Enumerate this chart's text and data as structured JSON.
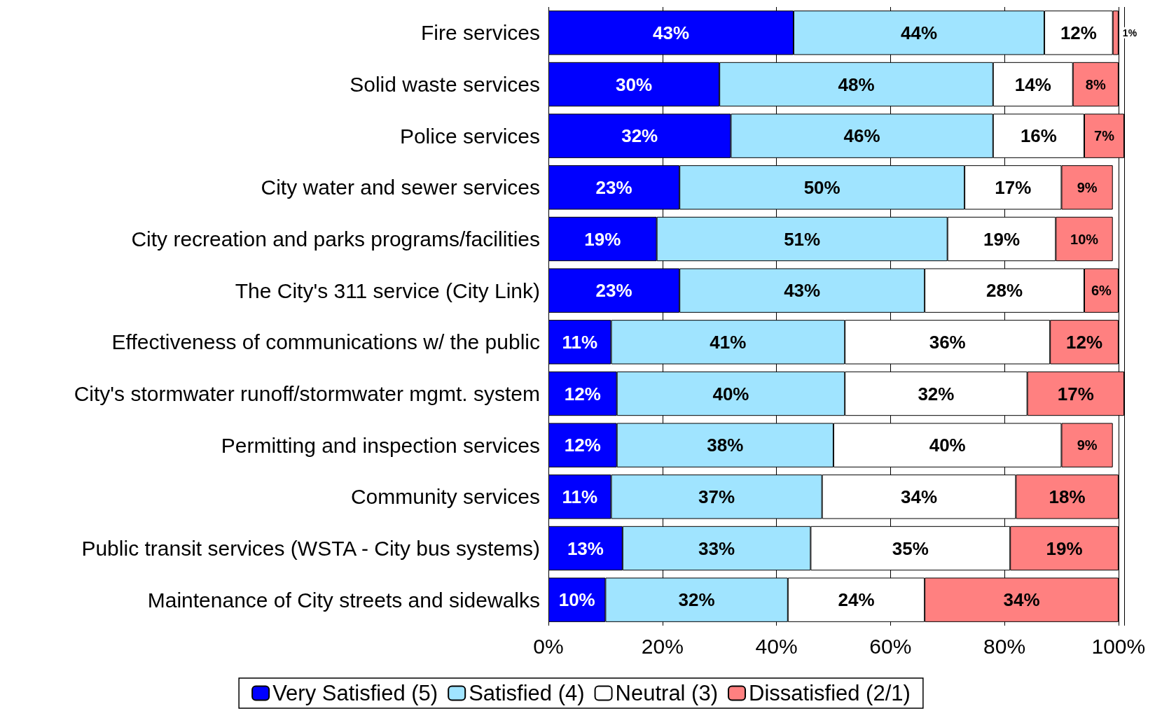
{
  "chart_data": {
    "type": "bar",
    "orientation": "horizontal",
    "stacked": true,
    "categories": [
      "Fire services",
      "Solid waste services",
      "Police services",
      "City water and sewer services",
      "City recreation and parks programs/facilities",
      "The City's 311 service (City Link)",
      "Effectiveness of communications w/ the public",
      "City's stormwater runoff/stormwater mgmt. system",
      "Permitting and inspection services",
      "Community services",
      "Public transit services (WSTA - City bus systems)",
      "Maintenance of City streets and sidewalks"
    ],
    "series": [
      {
        "name": "Very Satisfied (5)",
        "color": "#0000ff",
        "values": [
          43,
          30,
          32,
          23,
          19,
          23,
          11,
          12,
          12,
          11,
          13,
          10
        ],
        "value_labels": [
          "43%",
          "30%",
          "32%",
          "23%",
          "19%",
          "23%",
          "11%",
          "12%",
          "12%",
          "11%",
          "13%",
          "10%"
        ]
      },
      {
        "name": "Satisfied (4)",
        "color": "#a0e4ff",
        "values": [
          44,
          48,
          46,
          50,
          51,
          43,
          41,
          40,
          38,
          37,
          33,
          32
        ],
        "value_labels": [
          "44%",
          "48%",
          "46%",
          "50%",
          "51%",
          "43%",
          "41%",
          "40%",
          "38%",
          "37%",
          "33%",
          "32%"
        ]
      },
      {
        "name": "Neutral (3)",
        "color": "#ffffff",
        "values": [
          12,
          14,
          16,
          17,
          19,
          28,
          36,
          32,
          40,
          34,
          35,
          24
        ],
        "value_labels": [
          "12%",
          "14%",
          "16%",
          "17%",
          "19%",
          "28%",
          "36%",
          "32%",
          "40%",
          "34%",
          "35%",
          "24%"
        ]
      },
      {
        "name": "Dissatisfied (2/1)",
        "color": "#ff8080",
        "values": [
          1,
          8,
          7,
          9,
          10,
          6,
          12,
          17,
          9,
          18,
          19,
          34
        ],
        "value_labels": [
          "1%",
          "8%",
          "7%",
          "9%",
          "10%",
          "6%",
          "12%",
          "17%",
          "9%",
          "18%",
          "19%",
          "34%"
        ]
      }
    ],
    "xlim": [
      0,
      101
    ],
    "xticks": [
      {
        "value": 0,
        "label": "0%"
      },
      {
        "value": 20,
        "label": "20%"
      },
      {
        "value": 40,
        "label": "40%"
      },
      {
        "value": 60,
        "label": "60%"
      },
      {
        "value": 80,
        "label": "80%"
      },
      {
        "value": 100,
        "label": "100%"
      }
    ],
    "grid": "x",
    "legend": "bottom"
  }
}
